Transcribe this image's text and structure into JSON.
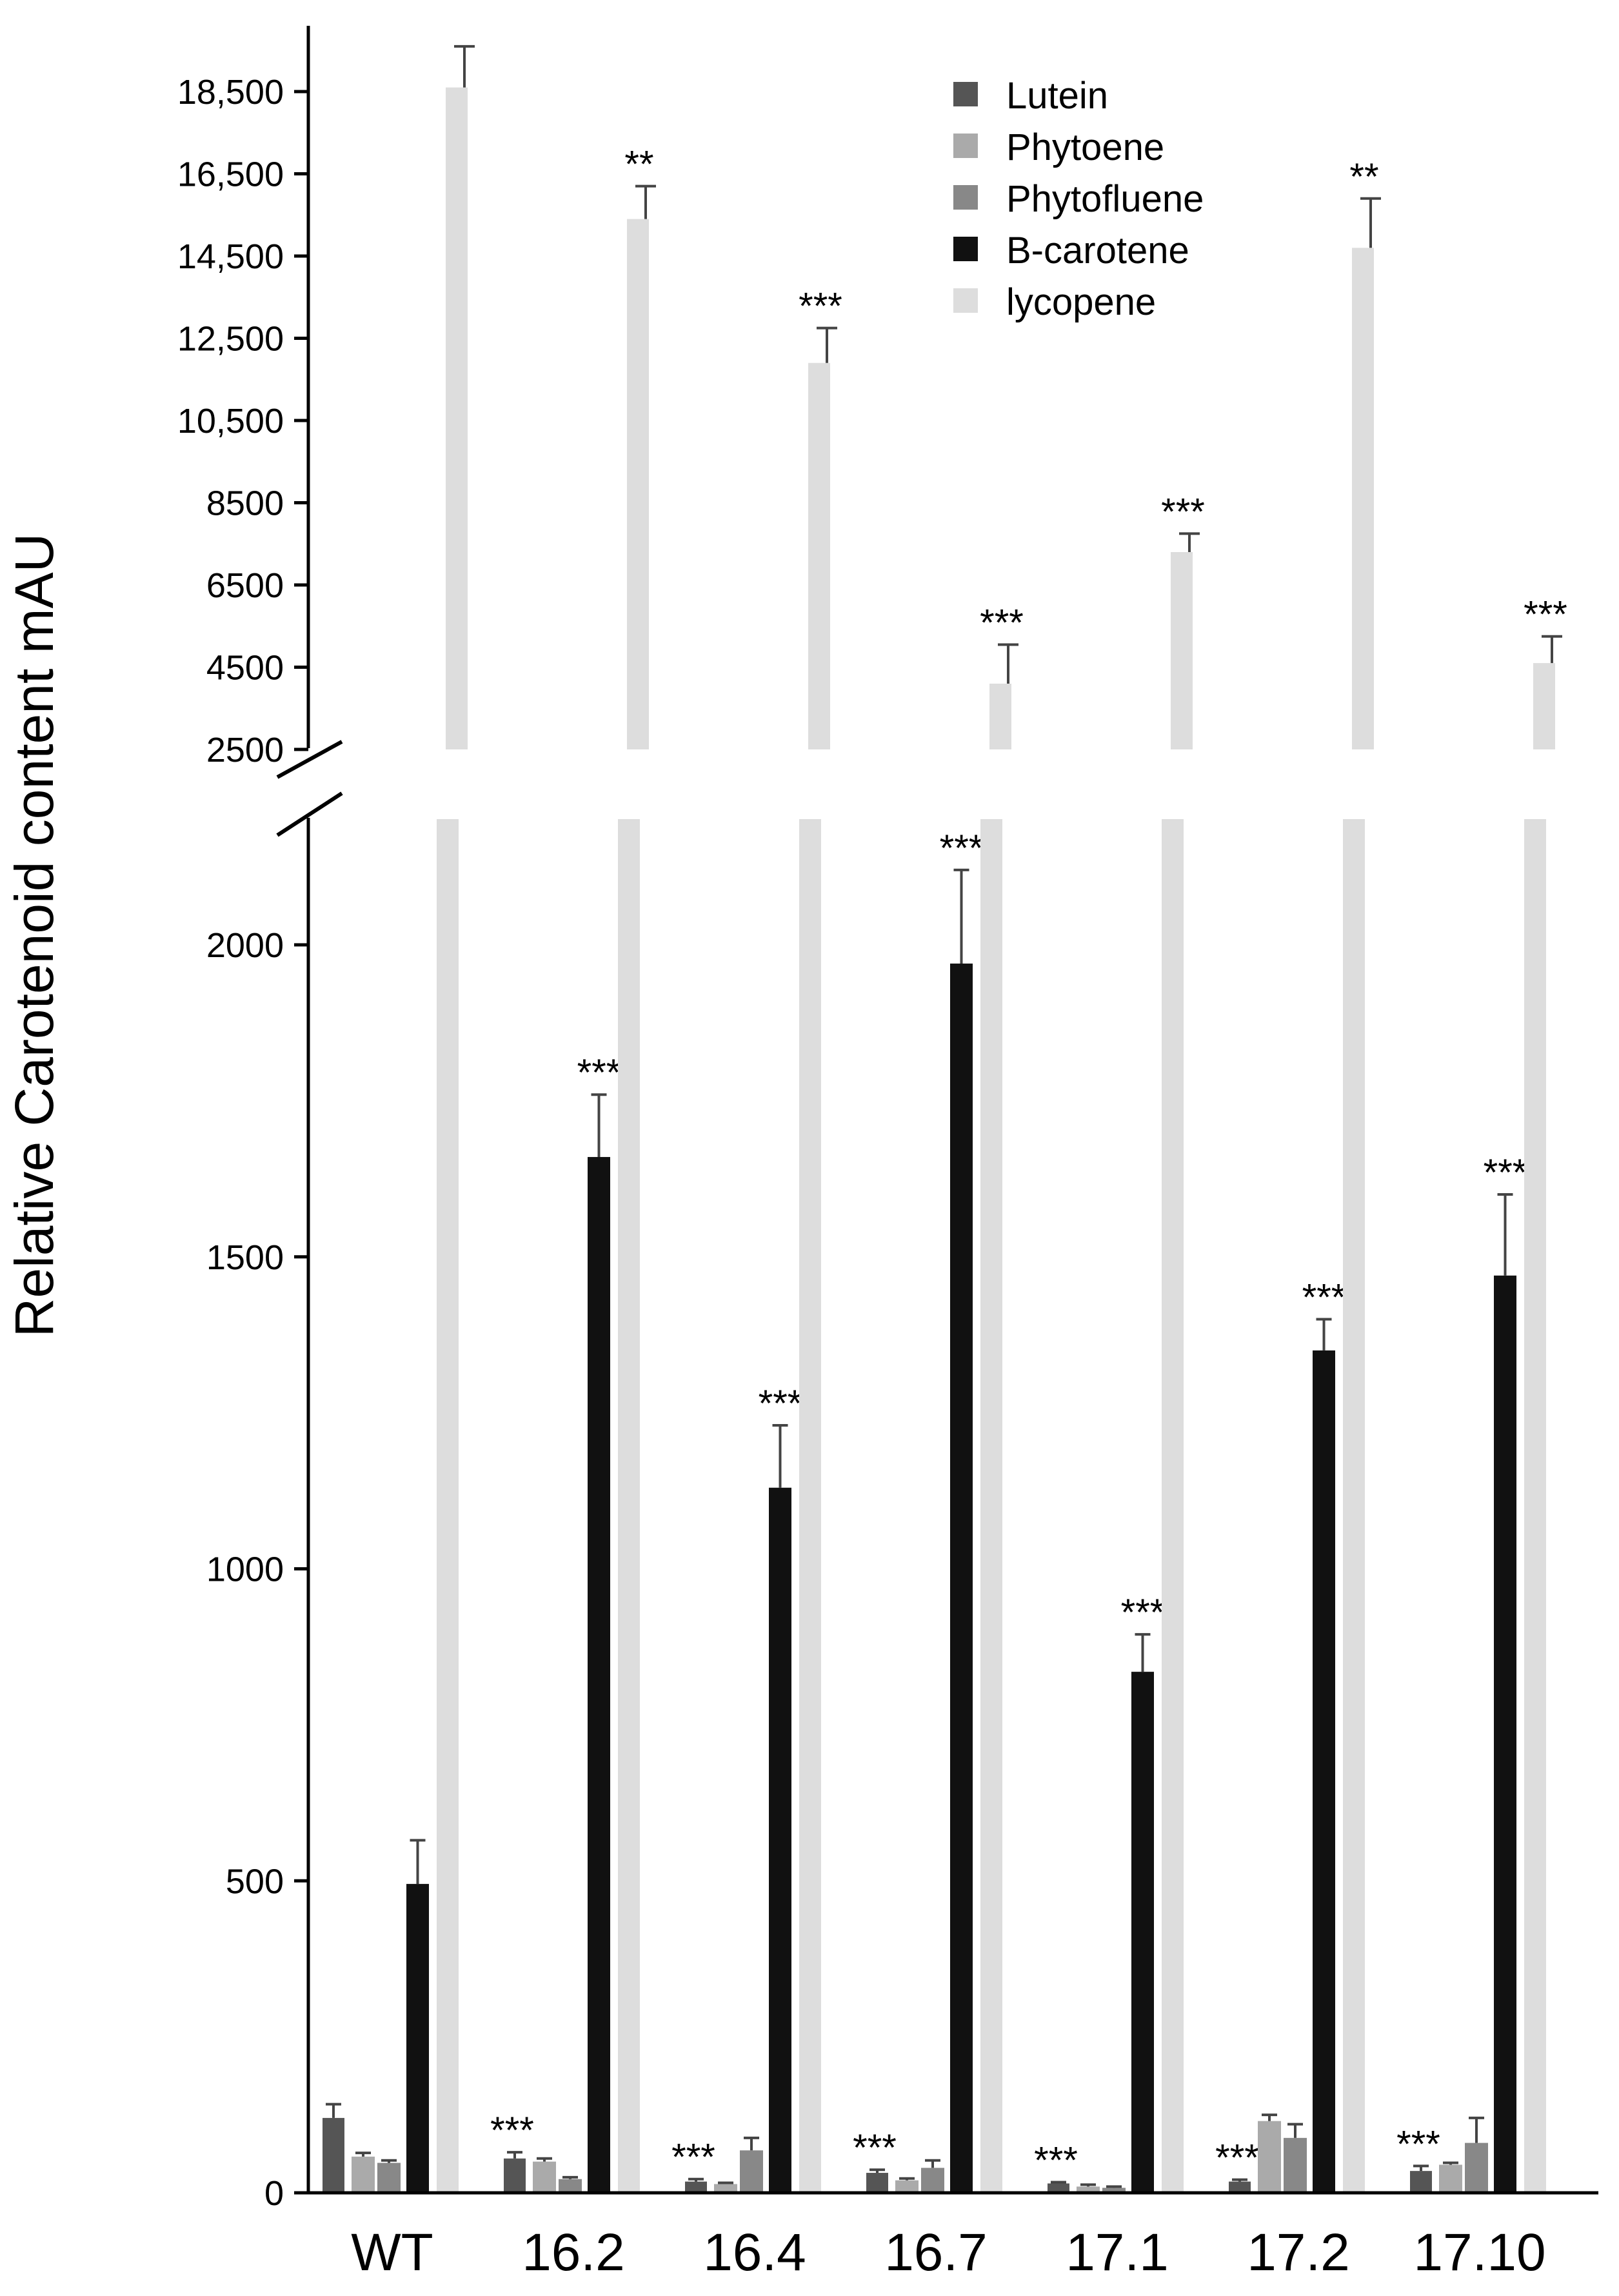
{
  "chart_data": {
    "type": "bar",
    "ylabel": "Relative Carotenoid content mAU",
    "xlabel": "",
    "title": "",
    "categories": [
      "WT",
      "16.2",
      "16.4",
      "16.7",
      "17.1",
      "17.2",
      "17.10"
    ],
    "axis_break": true,
    "lower_axis": {
      "ylim": [
        0,
        2200
      ],
      "ticks": [
        0,
        500,
        1000,
        1500,
        2000
      ],
      "tick_labels": [
        "0",
        "500",
        "1000",
        "1500",
        "2000"
      ]
    },
    "upper_axis": {
      "ylim": [
        2500,
        19900
      ],
      "ticks": [
        2500,
        4500,
        6500,
        8500,
        10500,
        12500,
        14500,
        16500,
        18500
      ],
      "tick_labels": [
        "2500",
        "4500",
        "6500",
        "8500",
        "10,500",
        "12,500",
        "14,500",
        "16,500",
        "18,500"
      ]
    },
    "legend": {
      "placement": "top-right"
    },
    "series": [
      {
        "name": "Lutein",
        "color": "#555555",
        "values": [
          120,
          55,
          18,
          32,
          15,
          18,
          35
        ],
        "errors": [
          22,
          10,
          4,
          5,
          2,
          3,
          8
        ],
        "sig": [
          "",
          "***",
          "***",
          "***",
          "***",
          "***",
          "***"
        ]
      },
      {
        "name": "Phytoene",
        "color": "#aaaaaa",
        "values": [
          58,
          50,
          14,
          20,
          10,
          115,
          45
        ],
        "errors": [
          6,
          5,
          2,
          3,
          3,
          10,
          3
        ],
        "sig": [
          "",
          "",
          "",
          "",
          "",
          "",
          ""
        ]
      },
      {
        "name": "Phytofluene",
        "color": "#888888",
        "values": [
          48,
          22,
          68,
          40,
          8,
          88,
          80
        ],
        "errors": [
          4,
          3,
          20,
          12,
          2,
          22,
          40
        ],
        "sig": [
          "",
          "",
          "",
          "",
          "",
          "",
          ""
        ]
      },
      {
        "name": "B-carotene",
        "color": "#111111",
        "values": [
          495,
          1660,
          1130,
          1970,
          835,
          1350,
          1470
        ],
        "errors": [
          70,
          100,
          100,
          150,
          60,
          50,
          130
        ],
        "sig": [
          "",
          "***",
          "***",
          "***",
          "***",
          "***",
          "***"
        ]
      },
      {
        "name": "lycopene",
        "color": "#dddddd",
        "values": [
          18600,
          15400,
          11900,
          4100,
          7300,
          14700,
          4600
        ],
        "errors": [
          1000,
          800,
          850,
          950,
          450,
          1200,
          650
        ],
        "sig": [
          "",
          "**",
          "***",
          "***",
          "***",
          "**",
          "***"
        ]
      }
    ]
  }
}
